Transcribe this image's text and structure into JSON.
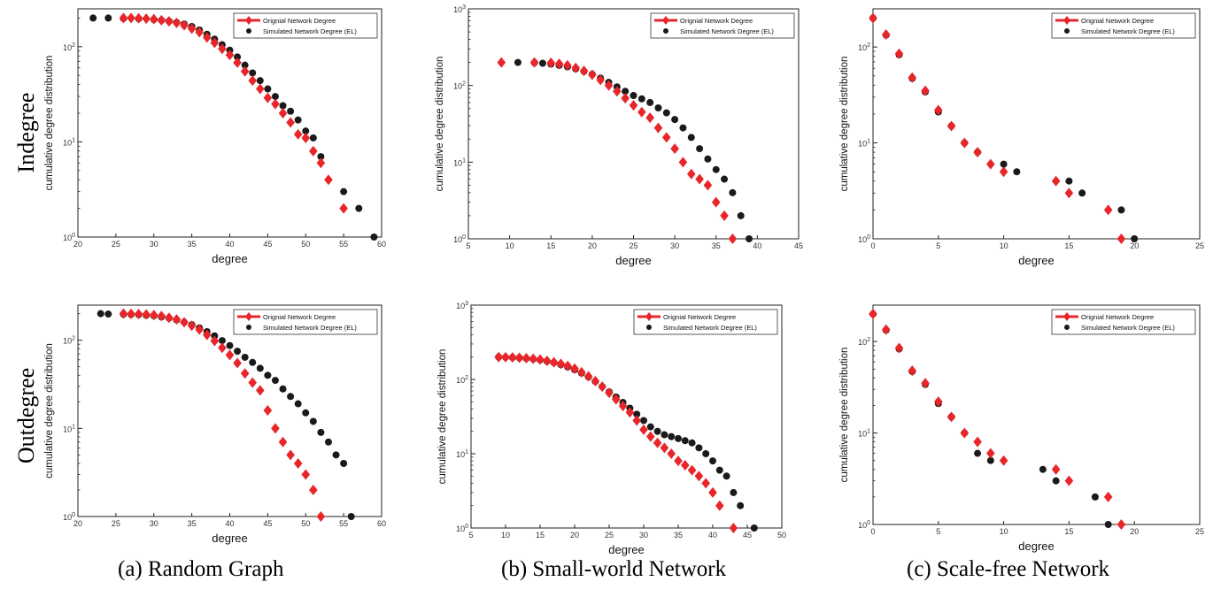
{
  "row_labels": [
    "Indegree",
    "Outdegree"
  ],
  "captions": [
    "(a) Random Graph",
    "(b) Small-world Network",
    "(c) Scale-free Network"
  ],
  "colors": {
    "original": "#e8262a",
    "simulated": "#1a1a1a",
    "legend_line": "#e8262a"
  },
  "chart_data": [
    {
      "id": "random-indegree",
      "type": "scatter",
      "yscale": "log",
      "xlabel": "degree",
      "ylabel": "cumulative degree distribution",
      "xlim": [
        20,
        60
      ],
      "xticks": [
        "20",
        "25",
        "30",
        "35",
        "40",
        "45",
        "50",
        "55",
        "60"
      ],
      "ylim": [
        1,
        250
      ],
      "yticks": [
        "10^0",
        "10^1",
        "10^2"
      ],
      "legend": "top-right",
      "series": [
        {
          "name": "Orignial Network Degree",
          "marker": "diamond",
          "x": [
            26,
            27,
            28,
            29,
            30,
            31,
            32,
            33,
            34,
            35,
            36,
            37,
            38,
            39,
            40,
            41,
            42,
            43,
            44,
            45,
            46,
            47,
            48,
            49,
            50,
            51,
            52,
            53,
            55
          ],
          "y": [
            200,
            200,
            199,
            197,
            195,
            190,
            185,
            178,
            168,
            155,
            142,
            125,
            110,
            95,
            82,
            68,
            55,
            44,
            36,
            29,
            25,
            20,
            16,
            12,
            11,
            8,
            6,
            4,
            2
          ]
        },
        {
          "name": "Simulated Network Degree (EL)",
          "marker": "circle",
          "x": [
            22,
            24,
            26,
            28,
            30,
            31,
            32,
            33,
            34,
            35,
            36,
            37,
            38,
            39,
            40,
            41,
            42,
            43,
            44,
            45,
            46,
            47,
            48,
            49,
            50,
            51,
            52,
            55,
            57,
            59
          ],
          "y": [
            200,
            200,
            198,
            197,
            193,
            190,
            186,
            180,
            173,
            163,
            150,
            135,
            120,
            105,
            92,
            78,
            64,
            53,
            44,
            36,
            30,
            24,
            21,
            17,
            13,
            11,
            7,
            3,
            2,
            1
          ]
        }
      ]
    },
    {
      "id": "smallworld-indegree",
      "type": "scatter",
      "yscale": "log",
      "xlabel": "degree",
      "ylabel": "cumulative degree distribution",
      "xlim": [
        5,
        45
      ],
      "xticks": [
        "5",
        "10",
        "15",
        "20",
        "25",
        "30",
        "35",
        "40",
        "45"
      ],
      "ylim": [
        1,
        1000
      ],
      "yticks": [
        "10^0",
        "10^1",
        "10^2",
        "10^3"
      ],
      "legend": "top-right",
      "series": [
        {
          "name": "Orignial Network Degree",
          "marker": "diamond",
          "x": [
            9,
            13,
            15,
            16,
            17,
            18,
            19,
            20,
            21,
            22,
            23,
            24,
            25,
            26,
            27,
            28,
            29,
            30,
            31,
            32,
            33,
            34,
            35,
            36,
            37
          ],
          "y": [
            200,
            200,
            198,
            192,
            183,
            170,
            155,
            138,
            118,
            100,
            84,
            68,
            55,
            45,
            38,
            28,
            21,
            15,
            10,
            7,
            6,
            5,
            3,
            2,
            1
          ]
        },
        {
          "name": "Simulated Network Degree (EL)",
          "marker": "circle",
          "x": [
            11,
            13,
            14,
            15,
            16,
            17,
            18,
            19,
            20,
            21,
            22,
            23,
            24,
            25,
            26,
            27,
            28,
            29,
            30,
            31,
            32,
            33,
            34,
            35,
            36,
            37,
            38,
            39
          ],
          "y": [
            200,
            198,
            195,
            190,
            183,
            175,
            165,
            153,
            140,
            125,
            110,
            96,
            84,
            74,
            67,
            60,
            51,
            44,
            36,
            28,
            21,
            15,
            11,
            8,
            6,
            4,
            2,
            1
          ]
        }
      ]
    },
    {
      "id": "scalefree-indegree",
      "type": "scatter",
      "yscale": "log",
      "xlabel": "degree",
      "ylabel": "cumulative degree distribution",
      "xlim": [
        0,
        25
      ],
      "xticks": [
        "0",
        "5",
        "10",
        "15",
        "20",
        "25"
      ],
      "ylim": [
        1,
        250
      ],
      "yticks": [
        "10^0",
        "10^1",
        "10^2"
      ],
      "legend": "top-right",
      "series": [
        {
          "name": "Orignial Network Degree",
          "marker": "diamond",
          "x": [
            0,
            1,
            2,
            3,
            4,
            5,
            6,
            7,
            8,
            9,
            10,
            14,
            15,
            18,
            19
          ],
          "y": [
            200,
            135,
            85,
            48,
            35,
            22,
            15,
            10,
            8,
            6,
            5,
            4,
            3,
            2,
            1
          ]
        },
        {
          "name": "Simulated Network Degree (EL)",
          "marker": "circle",
          "x": [
            0,
            1,
            2,
            3,
            4,
            5,
            6,
            7,
            8,
            10,
            11,
            15,
            16,
            19,
            20
          ],
          "y": [
            200,
            133,
            83,
            47,
            34,
            21,
            15,
            10,
            8,
            6,
            5,
            4,
            3,
            2,
            1
          ]
        }
      ]
    },
    {
      "id": "random-outdegree",
      "type": "scatter",
      "yscale": "log",
      "xlabel": "degree",
      "ylabel": "cumulative degree distribution",
      "xlim": [
        20,
        60
      ],
      "xticks": [
        "20",
        "25",
        "30",
        "35",
        "40",
        "45",
        "50",
        "55",
        "60"
      ],
      "ylim": [
        1,
        250
      ],
      "yticks": [
        "10^0",
        "10^1",
        "10^2"
      ],
      "legend": "top-right",
      "series": [
        {
          "name": "Orignial Network Degree",
          "marker": "diamond",
          "x": [
            26,
            27,
            28,
            29,
            30,
            31,
            32,
            33,
            34,
            35,
            36,
            37,
            38,
            39,
            40,
            41,
            42,
            43,
            44,
            45,
            46,
            47,
            48,
            49,
            50,
            51,
            52
          ],
          "y": [
            200,
            199,
            198,
            196,
            193,
            188,
            180,
            172,
            160,
            146,
            132,
            115,
            98,
            82,
            68,
            55,
            42,
            33,
            27,
            16,
            10,
            7,
            5,
            4,
            3,
            2,
            1
          ]
        },
        {
          "name": "Simulated Network Degree (EL)",
          "marker": "circle",
          "x": [
            23,
            24,
            26,
            27,
            28,
            29,
            30,
            31,
            32,
            33,
            34,
            35,
            36,
            37,
            38,
            39,
            40,
            41,
            42,
            43,
            44,
            45,
            46,
            47,
            48,
            49,
            50,
            51,
            52,
            53,
            54,
            55,
            56
          ],
          "y": [
            200,
            198,
            197,
            196,
            195,
            192,
            189,
            184,
            178,
            170,
            160,
            150,
            138,
            125,
            112,
            99,
            87,
            75,
            64,
            56,
            48,
            40,
            35,
            28,
            23,
            19,
            15,
            12,
            9,
            7,
            5,
            4,
            1
          ]
        }
      ]
    },
    {
      "id": "smallworld-outdegree",
      "type": "scatter",
      "yscale": "log",
      "xlabel": "degree",
      "ylabel": "cumulative degree distribution",
      "xlim": [
        5,
        50
      ],
      "xticks": [
        "5",
        "10",
        "15",
        "20",
        "25",
        "30",
        "35",
        "40",
        "45",
        "50"
      ],
      "ylim": [
        1,
        1000
      ],
      "yticks": [
        "10^0",
        "10^1",
        "10^2",
        "10^3"
      ],
      "legend": "top-right",
      "series": [
        {
          "name": "Orignial Network Degree",
          "marker": "diamond",
          "x": [
            9,
            10,
            11,
            12,
            13,
            14,
            15,
            16,
            17,
            18,
            19,
            20,
            21,
            22,
            23,
            24,
            25,
            26,
            27,
            28,
            29,
            30,
            31,
            32,
            33,
            34,
            35,
            36,
            37,
            38,
            39,
            40,
            41,
            43
          ],
          "y": [
            200,
            199,
            198,
            196,
            193,
            190,
            185,
            178,
            170,
            162,
            152,
            140,
            125,
            110,
            95,
            80,
            66,
            54,
            44,
            36,
            28,
            21,
            17,
            14,
            12,
            10,
            8,
            7,
            6,
            5,
            4,
            3,
            2,
            1
          ]
        },
        {
          "name": "Simulated Network Degree (EL)",
          "marker": "circle",
          "x": [
            9,
            10,
            11,
            12,
            13,
            14,
            15,
            16,
            17,
            18,
            19,
            20,
            21,
            22,
            23,
            24,
            25,
            26,
            27,
            28,
            29,
            30,
            31,
            32,
            33,
            34,
            35,
            36,
            37,
            38,
            39,
            40,
            41,
            42,
            43,
            44,
            46
          ],
          "y": [
            200,
            199,
            197,
            195,
            192,
            188,
            183,
            176,
            168,
            158,
            147,
            135,
            122,
            108,
            94,
            80,
            68,
            58,
            49,
            41,
            34,
            28,
            23,
            20,
            18,
            17,
            16,
            15,
            14,
            12,
            10,
            8,
            6,
            5,
            3,
            2,
            1
          ]
        }
      ]
    },
    {
      "id": "scalefree-outdegree",
      "type": "scatter",
      "yscale": "log",
      "xlabel": "degree",
      "ylabel": "cumulative degree distribution",
      "xlim": [
        0,
        25
      ],
      "xticks": [
        "0",
        "5",
        "10",
        "15",
        "20",
        "25"
      ],
      "ylim": [
        1,
        250
      ],
      "yticks": [
        "10^0",
        "10^1",
        "10^2"
      ],
      "legend": "top-right",
      "series": [
        {
          "name": "Orignial Network Degree",
          "marker": "diamond",
          "x": [
            0,
            1,
            2,
            3,
            4,
            5,
            6,
            7,
            8,
            9,
            10,
            14,
            15,
            18,
            19
          ],
          "y": [
            200,
            135,
            85,
            48,
            35,
            22,
            15,
            10,
            8,
            6,
            5,
            4,
            3,
            2,
            1
          ]
        },
        {
          "name": "Simulated Network Degree (EL)",
          "marker": "circle",
          "x": [
            0,
            1,
            2,
            3,
            4,
            5,
            6,
            7,
            8,
            9,
            13,
            14,
            17,
            18
          ],
          "y": [
            200,
            133,
            83,
            47,
            34,
            21,
            15,
            10,
            6,
            5,
            4,
            3,
            2,
            1
          ]
        }
      ]
    }
  ]
}
